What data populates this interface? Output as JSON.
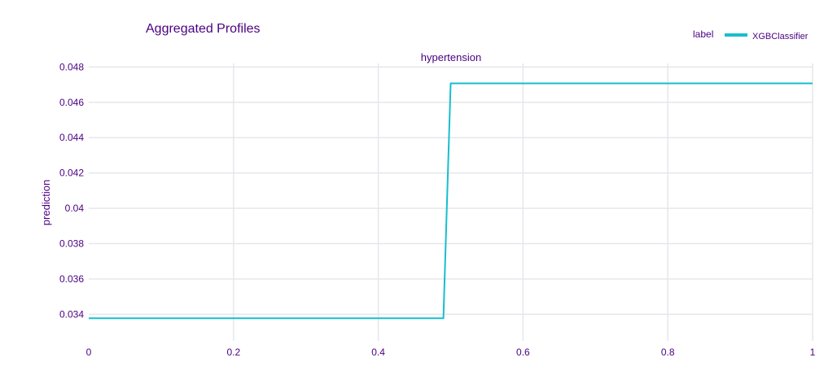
{
  "colors": {
    "text": "#4b0082",
    "grid": "#e5e7eb",
    "line": "#17becf",
    "background": "#ffffff"
  },
  "chart_data": {
    "type": "line",
    "title": "Aggregated Profiles",
    "subplot_title": "hypertension",
    "xlabel": "",
    "ylabel": "prediction",
    "legend": {
      "title": "label",
      "placement": "top-right",
      "entries": [
        "XGBClassifier"
      ]
    },
    "xlim": [
      0,
      1
    ],
    "ylim": [
      0.0325,
      0.0482
    ],
    "grid": true,
    "x_ticks": [
      0,
      0.2,
      0.4,
      0.6,
      0.8,
      1
    ],
    "x_tick_labels": [
      "0",
      "0.2",
      "0.4",
      "0.6",
      "0.8",
      "1"
    ],
    "y_ticks": [
      0.034,
      0.036,
      0.038,
      0.04,
      0.042,
      0.044,
      0.046,
      0.048
    ],
    "y_tick_labels": [
      "0.034",
      "0.036",
      "0.038",
      "0.04",
      "0.042",
      "0.044",
      "0.046",
      "0.048"
    ],
    "series": [
      {
        "name": "XGBClassifier",
        "x": [
          0,
          0.49,
          0.5,
          1
        ],
        "y": [
          0.03378,
          0.03378,
          0.04707,
          0.04707
        ]
      }
    ]
  }
}
